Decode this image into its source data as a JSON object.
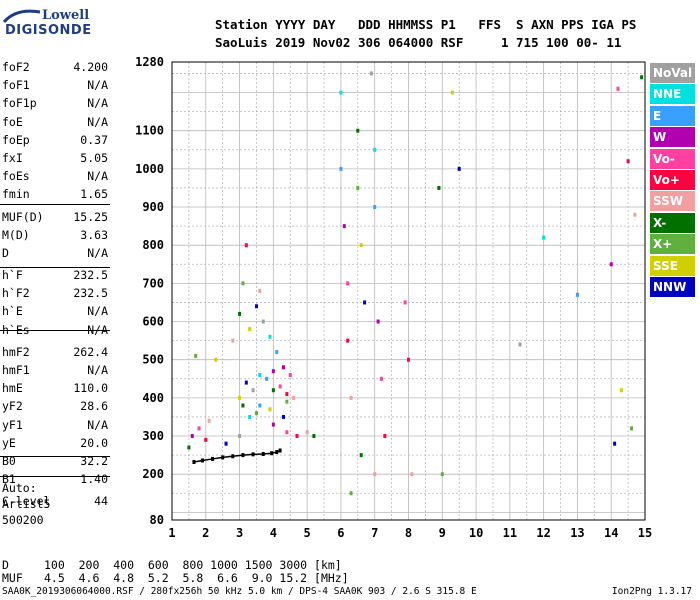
{
  "logo": {
    "line1": "Lowell",
    "line2": "DIGISONDE"
  },
  "header": {
    "row1": "Station YYYY DAY   DDD HHMMSS P1   FFS  S AXN PPS IGA PS",
    "row2": "SaoLuis 2019 Nov02 306 064000 RSF     1 715 100 00- 11"
  },
  "params_group1": [
    {
      "name": "foF2",
      "value": "4.200"
    },
    {
      "name": "foF1",
      "value": "N/A"
    },
    {
      "name": "foF1p",
      "value": "N/A"
    },
    {
      "name": "foE",
      "value": "N/A"
    },
    {
      "name": "foEp",
      "value": "0.37"
    },
    {
      "name": "fxI",
      "value": "5.05"
    },
    {
      "name": "foEs",
      "value": "N/A"
    },
    {
      "name": "fmin",
      "value": "1.65"
    }
  ],
  "params_group2": [
    {
      "name": "MUF(D)",
      "value": "15.25"
    },
    {
      "name": "M(D)",
      "value": "3.63"
    },
    {
      "name": "D",
      "value": "N/A"
    }
  ],
  "params_group3": [
    {
      "name": "h`F",
      "value": "232.5"
    },
    {
      "name": "h`F2",
      "value": "232.5"
    },
    {
      "name": "h`E",
      "value": "N/A"
    },
    {
      "name": "h`Es",
      "value": "N/A"
    }
  ],
  "params_group4": [
    {
      "name": "hmF2",
      "value": "262.4"
    },
    {
      "name": "hmF1",
      "value": "N/A"
    },
    {
      "name": "hmE",
      "value": "110.0"
    },
    {
      "name": "yF2",
      "value": "28.6"
    },
    {
      "name": "yF1",
      "value": "N/A"
    },
    {
      "name": "yE",
      "value": "20.0"
    },
    {
      "name": "B0",
      "value": "32.2"
    },
    {
      "name": "B1",
      "value": "1.40"
    }
  ],
  "clevel": {
    "name": "C-level",
    "value": "44"
  },
  "auto": {
    "line1": "Auto:",
    "line2": "Artist5",
    "line3": "500200"
  },
  "legend": [
    {
      "label": "NoVal",
      "color": "#a0a0a0"
    },
    {
      "label": "NNE",
      "color": "#00e0e0"
    },
    {
      "label": "E",
      "color": "#3aa0ff"
    },
    {
      "label": "W",
      "color": "#b000b0"
    },
    {
      "label": "Vo-",
      "color": "#ff40a0"
    },
    {
      "label": "Vo+",
      "color": "#ff0040"
    },
    {
      "label": "SSW",
      "color": "#f0a0a0"
    },
    {
      "label": "X-",
      "color": "#007000"
    },
    {
      "label": "X+",
      "color": "#60b040"
    },
    {
      "label": "SSE",
      "color": "#d0d000"
    },
    {
      "label": "NNW",
      "color": "#0000c0"
    }
  ],
  "bottom": {
    "d_label": "D",
    "d_values": "100  200  400  600  800 1000 1500 3000 [km]",
    "muf_label": "MUF",
    "muf_values": "4.5  4.6  4.8  5.2  5.8  6.6  9.0 15.2 [MHz]"
  },
  "footer": {
    "left": "SAA0K_2019306064000.RSF / 280fx256h 50 kHz 5.0 km / DPS-4 SAA0K 903 / 2.6 S 315.8 E",
    "right": "Ion2Png 1.3.17"
  },
  "chart_data": {
    "type": "scatter",
    "title": "",
    "xlabel": "",
    "ylabel": "",
    "xlim": [
      1,
      15
    ],
    "ylim": [
      80,
      1280
    ],
    "x_ticks": [
      1,
      2,
      3,
      4,
      5,
      6,
      7,
      8,
      9,
      10,
      11,
      12,
      13,
      14,
      15
    ],
    "y_ticks": [
      80,
      200,
      300,
      400,
      500,
      600,
      700,
      800,
      900,
      1000,
      1100,
      1280
    ],
    "grid": true,
    "series": [
      {
        "x": [
          1.65,
          1.9,
          2.2,
          2.5,
          2.8,
          3.1,
          3.4,
          3.7,
          3.95,
          4.1,
          4.2
        ],
        "y": [
          232,
          236,
          240,
          244,
          247,
          250,
          252,
          253,
          255,
          258,
          262
        ]
      },
      {
        "x": [
          1.6,
          1.8,
          2.0,
          2.1,
          1.5,
          1.7,
          2.3,
          2.6,
          3.0,
          3.3,
          3.6,
          4.0,
          4.4,
          4.7,
          5.0,
          5.2
        ],
        "y": [
          300,
          320,
          290,
          340,
          270,
          510,
          500,
          280,
          300,
          350,
          380,
          330,
          310,
          300,
          310,
          300
        ]
      },
      {
        "x": [
          2.8,
          3.0,
          3.1,
          3.3,
          3.5,
          3.7,
          3.9,
          4.1,
          4.3,
          4.5,
          3.2,
          3.6,
          4.0,
          4.4
        ],
        "y": [
          550,
          620,
          700,
          580,
          640,
          600,
          560,
          520,
          480,
          460,
          800,
          680,
          420,
          390
        ]
      },
      {
        "x": [
          3.0,
          3.2,
          3.4,
          3.6,
          3.8,
          4.0,
          4.2,
          4.4,
          4.6,
          3.1,
          3.5,
          3.9,
          4.3
        ],
        "y": [
          400,
          440,
          420,
          460,
          450,
          470,
          430,
          410,
          400,
          380,
          360,
          370,
          350
        ]
      },
      {
        "x": [
          6.0,
          6.0,
          6.1,
          6.2,
          6.2,
          6.3,
          6.5,
          6.5,
          6.6,
          6.7,
          6.9,
          7.0,
          7.0,
          7.1,
          7.2,
          7.3,
          7.0,
          6.6,
          6.3
        ],
        "y": [
          1200,
          1000,
          850,
          700,
          550,
          400,
          1100,
          950,
          800,
          650,
          1250,
          1050,
          900,
          600,
          450,
          300,
          200,
          250,
          150
        ]
      },
      {
        "x": [
          7.9,
          8.0,
          8.1,
          8.9,
          9.0,
          9.3,
          9.5,
          11.3,
          12.0,
          13.0,
          14.0,
          14.2,
          14.5,
          14.7,
          14.9,
          14.6,
          14.3,
          14.1
        ],
        "y": [
          650,
          500,
          200,
          950,
          200,
          1200,
          1000,
          540,
          820,
          670,
          750,
          1210,
          1020,
          880,
          1240,
          320,
          420,
          280
        ]
      }
    ]
  }
}
